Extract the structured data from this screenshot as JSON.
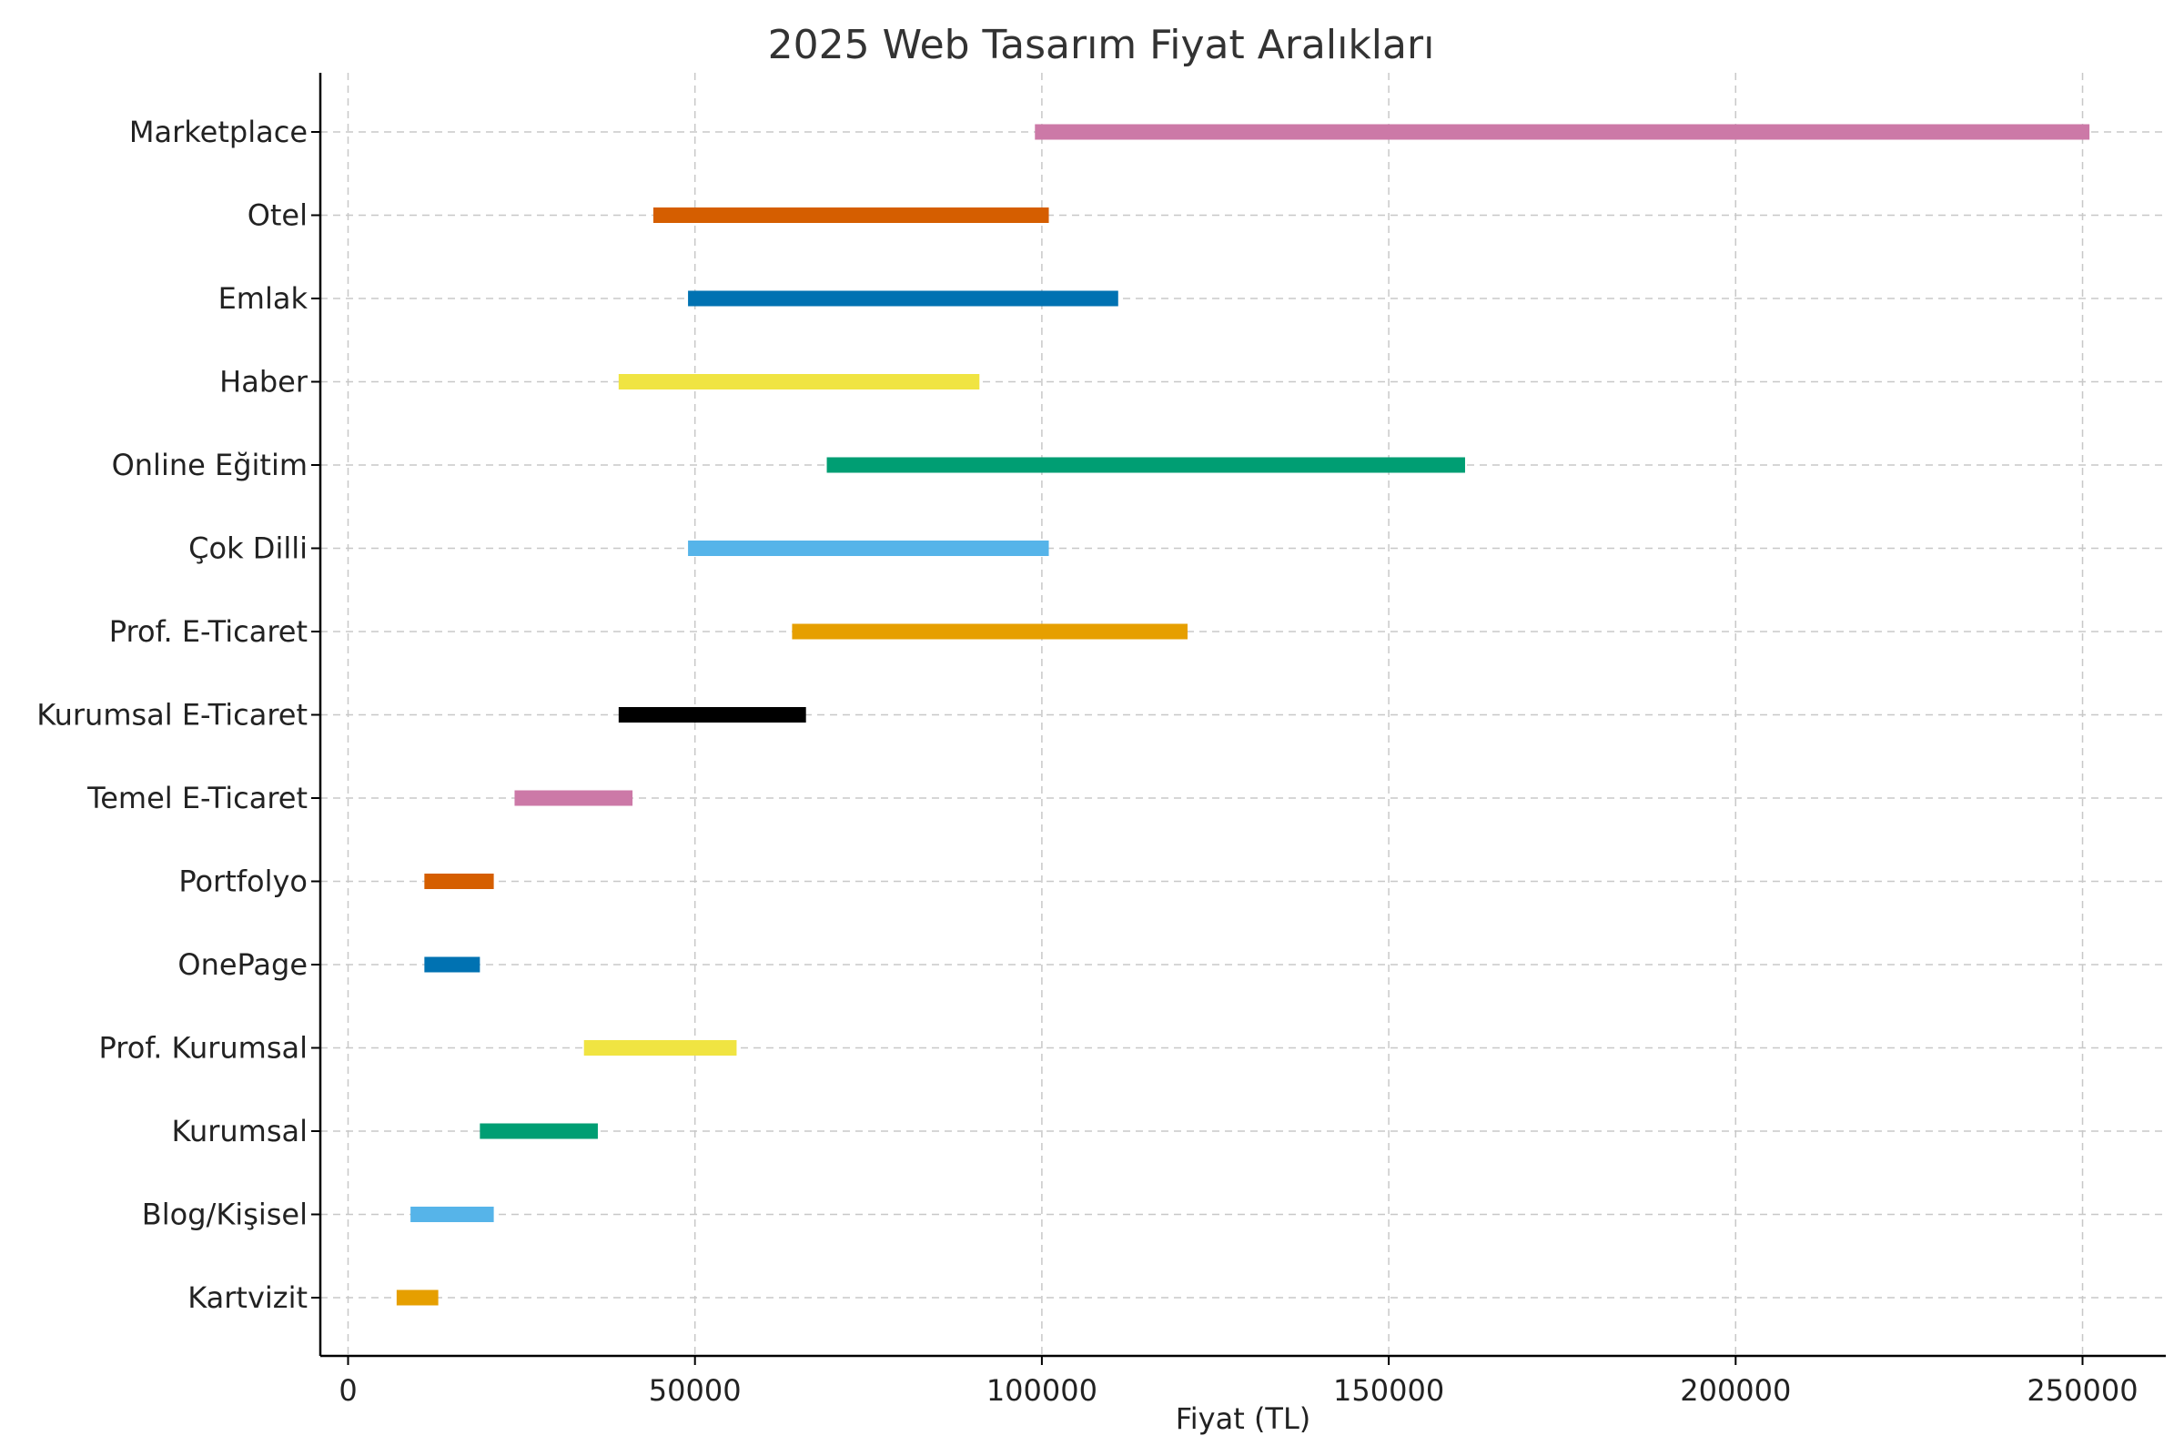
{
  "chart_data": {
    "type": "range-bar",
    "title": "2025 Web Tasarım Fiyat Aralıkları",
    "xlabel": "Fiyat (TL)",
    "ylabel": "",
    "xlim": [
      -4000,
      262000
    ],
    "xticks": [
      0,
      50000,
      100000,
      150000,
      200000,
      250000
    ],
    "xtick_labels": [
      "0",
      "50000",
      "100000",
      "150000",
      "200000",
      "250000"
    ],
    "grid": true,
    "categories": [
      {
        "label": "Kartvizit",
        "min": 7000,
        "max": 13000,
        "color": "#E69F00"
      },
      {
        "label": "Blog/Kişisel",
        "min": 9000,
        "max": 21000,
        "color": "#56B4E9"
      },
      {
        "label": "Kurumsal",
        "min": 19000,
        "max": 36000,
        "color": "#009E73"
      },
      {
        "label": "Prof. Kurumsal",
        "min": 34000,
        "max": 56000,
        "color": "#F0E442"
      },
      {
        "label": "OnePage",
        "min": 11000,
        "max": 19000,
        "color": "#0072B2"
      },
      {
        "label": "Portfolyo",
        "min": 11000,
        "max": 21000,
        "color": "#D55E00"
      },
      {
        "label": "Temel E-Ticaret",
        "min": 24000,
        "max": 41000,
        "color": "#CC79A7"
      },
      {
        "label": "Kurumsal E-Ticaret",
        "min": 39000,
        "max": 66000,
        "color": "#000000"
      },
      {
        "label": "Prof. E-Ticaret",
        "min": 64000,
        "max": 121000,
        "color": "#E69F00"
      },
      {
        "label": "Çok Dilli",
        "min": 49000,
        "max": 101000,
        "color": "#56B4E9"
      },
      {
        "label": "Online Eğitim",
        "min": 69000,
        "max": 161000,
        "color": "#009E73"
      },
      {
        "label": "Haber",
        "min": 39000,
        "max": 91000,
        "color": "#F0E442"
      },
      {
        "label": "Emlak",
        "min": 49000,
        "max": 111000,
        "color": "#0072B2"
      },
      {
        "label": "Otel",
        "min": 44000,
        "max": 101000,
        "color": "#D55E00"
      },
      {
        "label": "Marketplace",
        "min": 99000,
        "max": 251000,
        "color": "#CC79A7"
      }
    ]
  }
}
